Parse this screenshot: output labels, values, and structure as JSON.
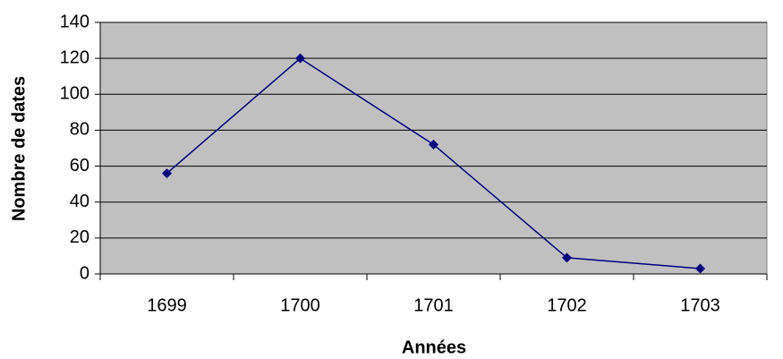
{
  "chart_data": {
    "type": "line",
    "x_label": "Années",
    "y_label": "Nombre de dates",
    "categories": [
      "1699",
      "1700",
      "1701",
      "1702",
      "1703"
    ],
    "series": [
      {
        "name": "Nombre de dates",
        "color": "#000080",
        "values": [
          56,
          120,
          72,
          9,
          3
        ]
      }
    ],
    "ylim": [
      0,
      140
    ],
    "yticks": [
      0,
      20,
      40,
      60,
      80,
      100,
      120,
      140
    ],
    "grid": true,
    "plot_background": "#c0c0c0"
  }
}
